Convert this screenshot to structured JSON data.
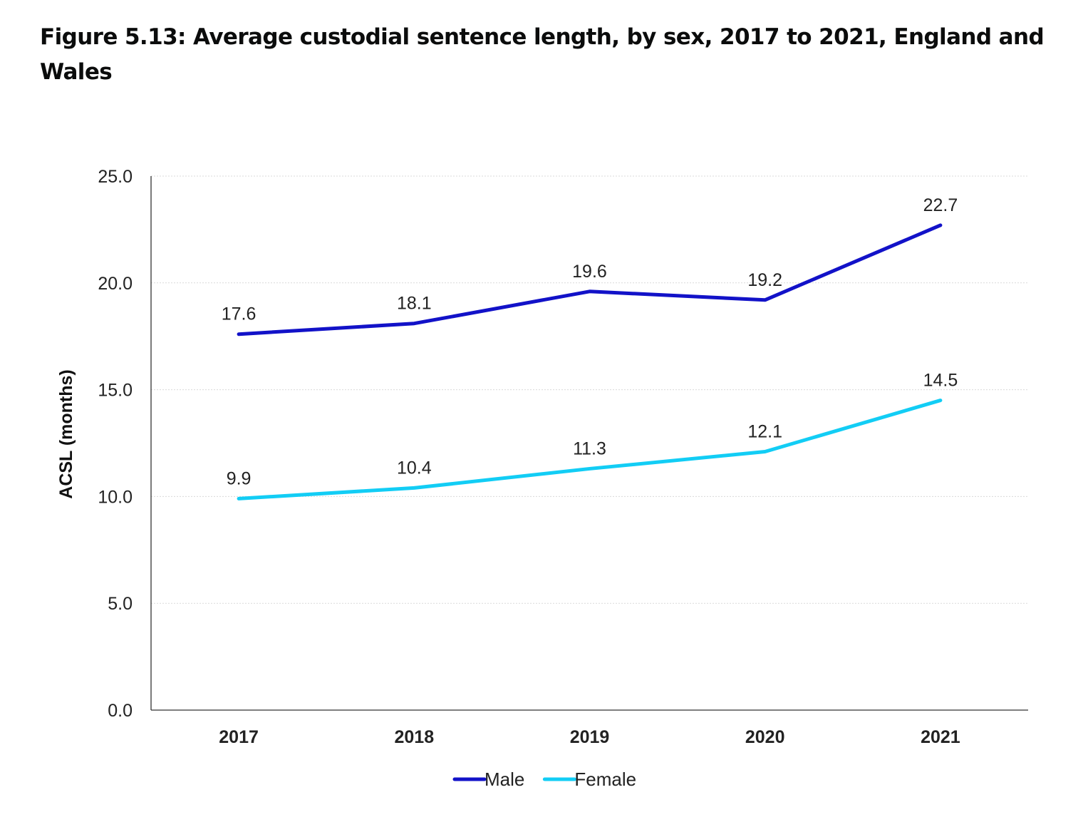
{
  "chart_data": {
    "type": "line",
    "title": "Figure 5.13: Average custodial sentence length, by sex, 2017 to 2021, England and Wales",
    "xlabel": "",
    "ylabel": "ACSL (months)",
    "categories": [
      "2017",
      "2018",
      "2019",
      "2020",
      "2021"
    ],
    "ylim": [
      0,
      25
    ],
    "yticks": [
      "0.0",
      "5.0",
      "10.0",
      "15.0",
      "20.0",
      "25.0"
    ],
    "grid": "horizontal dotted",
    "legend_position": "bottom",
    "series": [
      {
        "name": "Male",
        "color": "#1212c8",
        "values": [
          17.6,
          18.1,
          19.6,
          19.2,
          22.7
        ],
        "labels": [
          "17.6",
          "18.1",
          "19.6",
          "19.2",
          "22.7"
        ]
      },
      {
        "name": "Female",
        "color": "#12cdf5",
        "values": [
          9.9,
          10.4,
          11.3,
          12.1,
          14.5
        ],
        "labels": [
          "9.9",
          "10.4",
          "11.3",
          "12.1",
          "14.5"
        ]
      }
    ]
  }
}
